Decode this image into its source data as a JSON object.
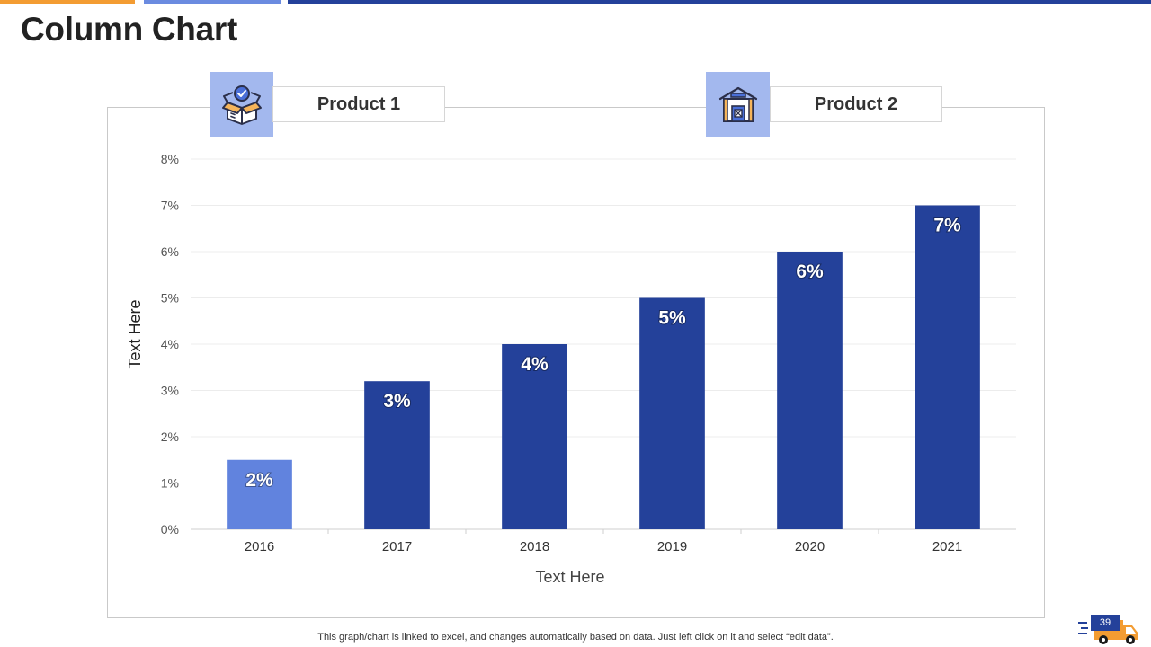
{
  "page": {
    "title": "Column Chart",
    "footnote": "This graph/chart is linked to excel, and changes automatically based on data. Just left click on it and select “edit data”.",
    "page_number": "39"
  },
  "products": [
    {
      "label": "Product 1",
      "icon": "open-box-check-icon"
    },
    {
      "label": "Product 2",
      "icon": "warehouse-icon"
    }
  ],
  "colors": {
    "accent_orange": "#f39c32",
    "accent_light_blue": "#6b8be0",
    "accent_dark_blue": "#24419a",
    "bar_highlight": "#6183de",
    "bar_main": "#24419a"
  },
  "chart_data": {
    "type": "bar",
    "categories": [
      "2016",
      "2017",
      "2018",
      "2019",
      "2020",
      "2021"
    ],
    "values": [
      1.5,
      3.2,
      4.0,
      5.0,
      6.0,
      7.0
    ],
    "data_labels": [
      "2%",
      "3%",
      "4%",
      "5%",
      "6%",
      "7%"
    ],
    "bar_colors": [
      "#6183de",
      "#24419a",
      "#24419a",
      "#24419a",
      "#24419a",
      "#24419a"
    ],
    "yticks": [
      "0%",
      "1%",
      "2%",
      "3%",
      "4%",
      "5%",
      "6%",
      "7%",
      "8%"
    ],
    "ylim": [
      0,
      8
    ],
    "xlabel": "Text Here",
    "ylabel": "Text Here",
    "grid": true,
    "legend": "none"
  }
}
